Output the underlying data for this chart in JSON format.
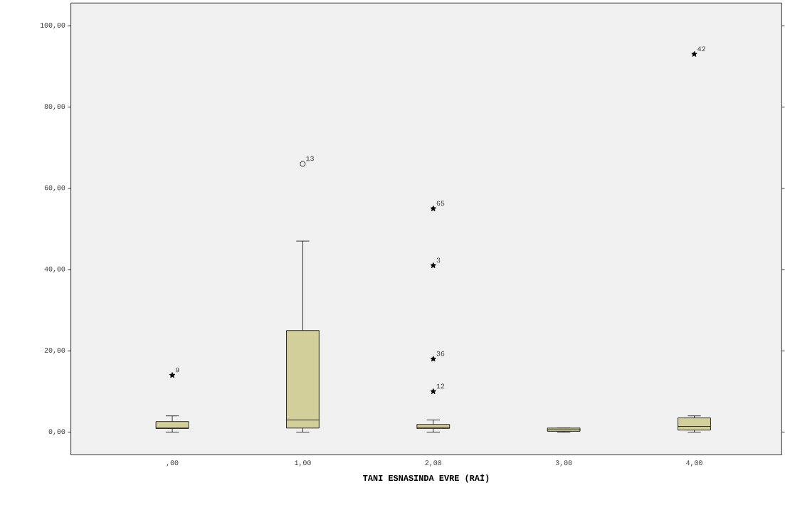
{
  "chart_data": {
    "type": "box",
    "xlabel": "TANI ESNASINDA EVRE (RAİ)",
    "categories": [
      ",00",
      "1,00",
      "2,00",
      "3,00",
      "4,00"
    ],
    "color": "#d3cf9b",
    "boxes": [
      {
        "low": 0,
        "q1": 0.9,
        "median": 1.0,
        "q3": 2.6,
        "high": 4
      },
      {
        "low": 0,
        "q1": 1,
        "median": 3,
        "q3": 25,
        "high": 47
      },
      {
        "low": 0,
        "q1": 0.9,
        "median": 1.2,
        "q3": 1.9,
        "high": 3
      },
      {
        "low": 0,
        "q1": 0.2,
        "median": 0.6,
        "q3": 1.0,
        "high": 1.0
      },
      {
        "low": 0,
        "q1": 0.5,
        "median": 1.4,
        "q3": 3.5,
        "high": 4
      }
    ],
    "series": [
      {
        "type": "scatter",
        "marker": "star",
        "color": "#000000",
        "x": [
          ",00",
          "2,00",
          "2,00",
          "2,00",
          "2,00",
          "4,00"
        ],
        "values": [
          14,
          10,
          18,
          41,
          55,
          93
        ]
      },
      {
        "type": "scatter",
        "marker": "circle",
        "color": "#000000",
        "x": [
          "1,00"
        ],
        "values": [
          66
        ]
      }
    ],
    "annotations": [
      {
        "text": "9",
        "x": ",00",
        "y": 14
      },
      {
        "text": "13",
        "x": "1,00",
        "y": 66
      },
      {
        "text": "65",
        "x": "2,00",
        "y": 55
      },
      {
        "text": "3",
        "x": "2,00",
        "y": 41
      },
      {
        "text": "36",
        "x": "2,00",
        "y": 18
      },
      {
        "text": "12",
        "x": "2,00",
        "y": 10
      },
      {
        "text": "42",
        "x": "4,00",
        "y": 93
      }
    ],
    "ylim": [
      -5.6,
      105.6
    ],
    "yticks": [
      {
        "value": 0,
        "label": "0,00"
      },
      {
        "value": 20,
        "label": "20,00"
      },
      {
        "value": 40,
        "label": "40,00"
      },
      {
        "value": 60,
        "label": "60,00"
      },
      {
        "value": 80,
        "label": "80,00"
      },
      {
        "value": 100,
        "label": "100,00"
      }
    ],
    "grid": false
  }
}
